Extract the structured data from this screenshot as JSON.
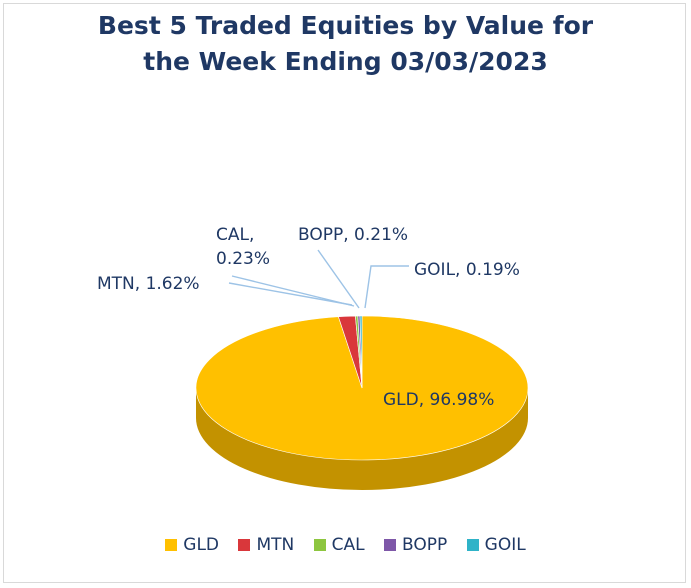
{
  "chart_data": {
    "type": "pie",
    "title_lines": [
      "Best 5 Traded Equities by Value for",
      "the Week Ending 03/03/2023"
    ],
    "three_d": true,
    "legend_position": "bottom",
    "slices": [
      {
        "name": "GLD",
        "value": 96.98,
        "label": "GLD, 96.98%",
        "color": "#ffc000",
        "side_color": "#c39200"
      },
      {
        "name": "MTN",
        "value": 1.62,
        "label": "MTN, 1.62%",
        "color": "#d9373b",
        "side_color": "#9c2426"
      },
      {
        "name": "CAL",
        "value": 0.23,
        "label_lines": [
          "CAL,",
          "0.23%"
        ],
        "color": "#8dc63f",
        "side_color": "#638b2b"
      },
      {
        "name": "BOPP",
        "value": 0.21,
        "label": "BOPP, 0.21%",
        "color": "#7e57a8",
        "side_color": "#573c75"
      },
      {
        "name": "GOIL",
        "value": 0.19,
        "label": "GOIL, 0.19%",
        "color": "#2fb3c8",
        "side_color": "#1f7d8c"
      }
    ]
  }
}
